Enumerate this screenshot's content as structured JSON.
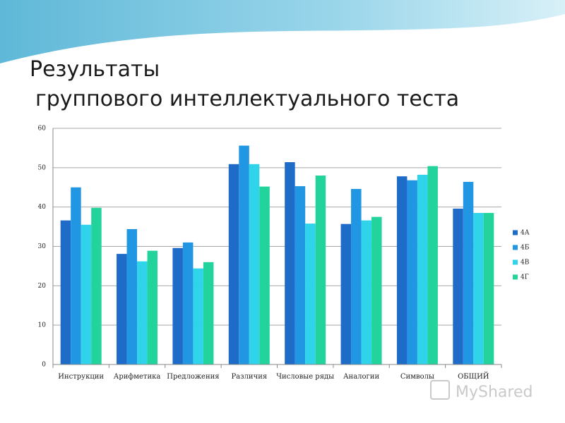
{
  "title": [
    "Результаты",
    "группового интеллектуального теста"
  ],
  "watermark": "MyShared",
  "chart_data": {
    "type": "bar",
    "categories": [
      "Инструкции",
      "Арифметика",
      "Предложения",
      "Различия",
      "Числовые ряды",
      "Аналогии",
      "Символы",
      "ОБЩИЙ"
    ],
    "series": [
      {
        "name": "4А",
        "color": "#1f6cc8",
        "values": [
          36.6,
          28.1,
          29.6,
          50.9,
          51.4,
          35.7,
          47.8,
          39.6
        ]
      },
      {
        "name": "4Б",
        "color": "#2196e3",
        "values": [
          45,
          34.4,
          31,
          55.6,
          45.3,
          44.6,
          46.8,
          46.4
        ]
      },
      {
        "name": "4В",
        "color": "#2fd3ea",
        "values": [
          35.5,
          26.2,
          24.4,
          50.9,
          35.8,
          36.6,
          48.2,
          38.5
        ]
      },
      {
        "name": "4Г",
        "color": "#22d49c",
        "values": [
          39.8,
          28.9,
          26,
          45.2,
          48,
          37.5,
          50.4,
          38.5
        ]
      }
    ],
    "ylim": [
      0,
      60
    ],
    "yticks": [
      0,
      10,
      20,
      30,
      40,
      50,
      60
    ],
    "grid": true,
    "legend": "right"
  }
}
